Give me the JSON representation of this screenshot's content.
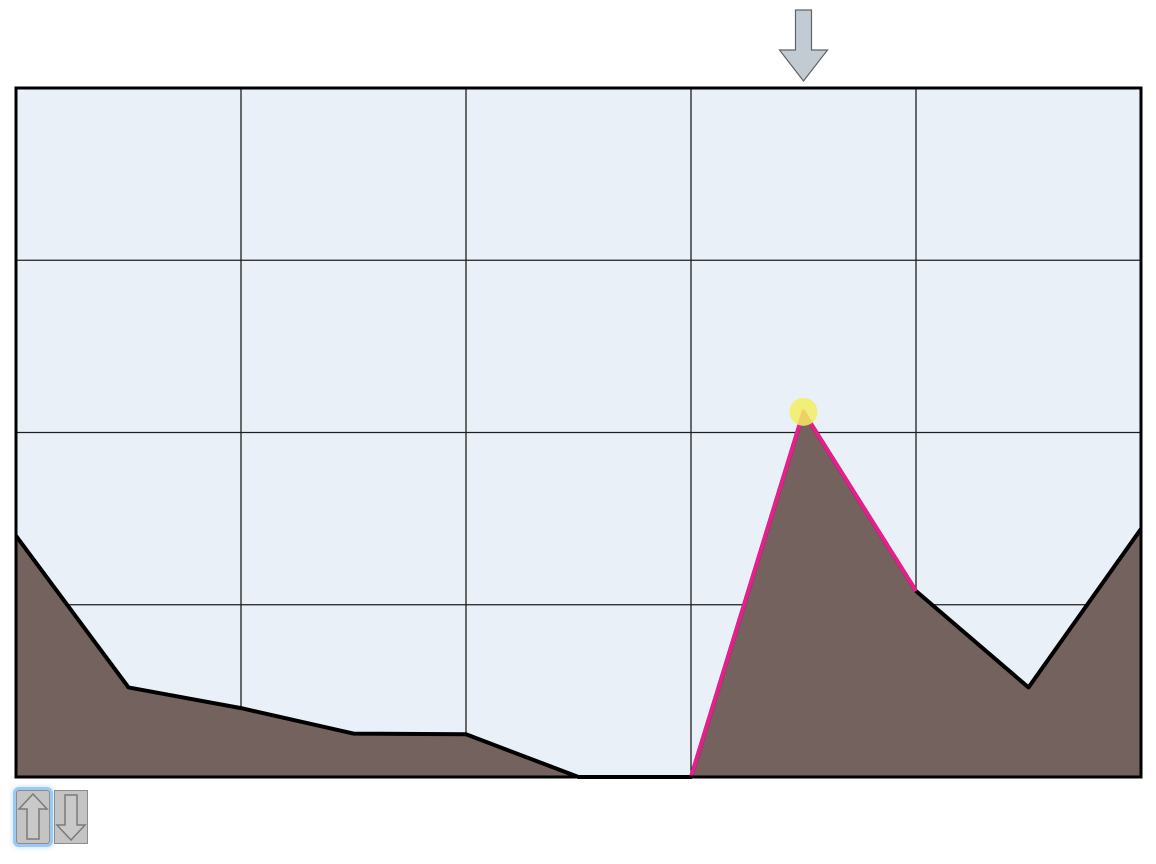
{
  "game": {
    "grid": {
      "columns": 5,
      "rows": 4
    },
    "terrain_heights": [
      0.35,
      0.13,
      0.1,
      0.063,
      0.062,
      0.0,
      0.0,
      0.53,
      0.27,
      0.13,
      0.36
    ],
    "highlighted_segment": [
      6,
      7,
      8
    ],
    "cursor_column": 7,
    "marker_column": 7
  },
  "colors": {
    "sky": "#e9f0f7",
    "grid_line": "#1f1f1f",
    "frame": "#000000",
    "terrain_fill": "#73625e",
    "terrain_outline": "#000000",
    "highlight_line": "#e81e8c",
    "marker_dot": "#f2ef61",
    "pointer_arrow": "#c3cbd2",
    "button_face": "#c4c4c4",
    "selection_glow": "#9cc9f3"
  },
  "controls": {
    "up_icon": "arrow-up-icon",
    "down_icon": "arrow-down-icon",
    "selected": "up"
  }
}
